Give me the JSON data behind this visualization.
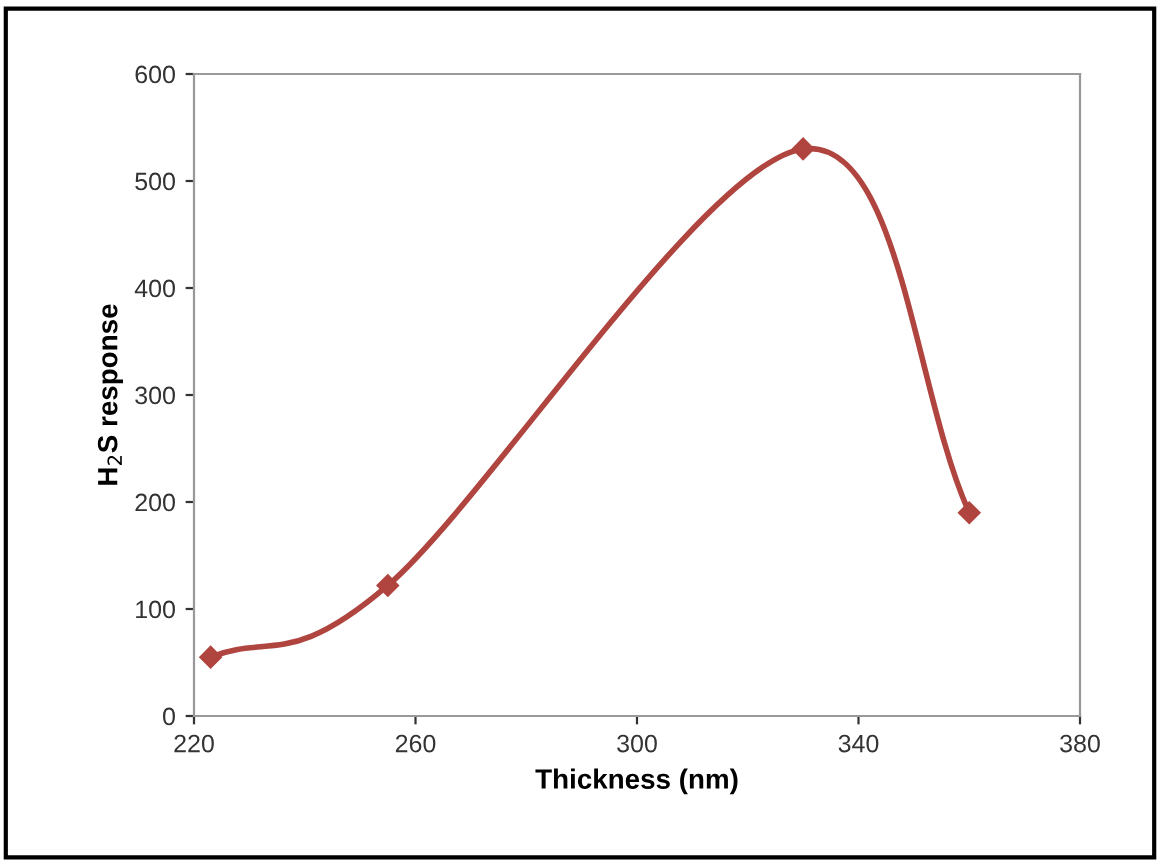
{
  "chart_data": {
    "type": "line",
    "xlabel": "Thickness (nm)",
    "ylabel": "H$_{2}$S response",
    "x": [
      223,
      255,
      330,
      360
    ],
    "series": [
      {
        "color": "#b0443f",
        "values": [
          55,
          122,
          530,
          190
        ]
      }
    ],
    "xlim": [
      220,
      380
    ],
    "xticks": [
      220,
      260,
      300,
      340,
      380
    ],
    "ylim": [
      0,
      600
    ],
    "yticks": [
      0,
      100,
      200,
      300,
      400,
      500,
      600
    ],
    "marker": "diamond",
    "line_style": "solid",
    "grid": false,
    "legend": false
  }
}
